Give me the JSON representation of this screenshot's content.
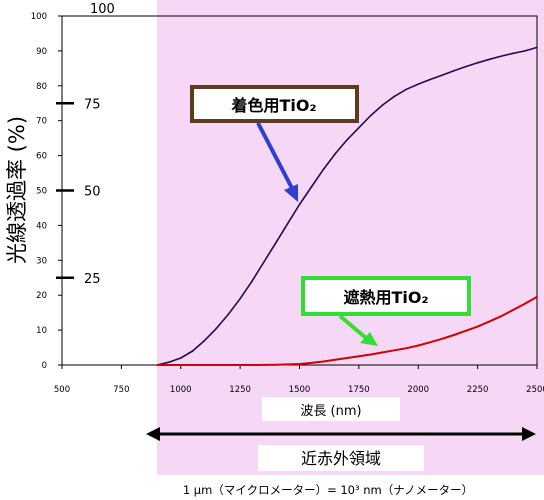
{
  "chart_data": {
    "type": "line",
    "ylabel": "光線透過率 (%)",
    "xlabel": "波長 (nm)",
    "xlim": [
      500,
      2500
    ],
    "ylim": [
      0,
      100
    ],
    "x_ticks": [
      "500",
      "750",
      "1000",
      "1250",
      "1500",
      "1750",
      "2000",
      "2250",
      "2500"
    ],
    "y_ticks": [
      "0",
      "10",
      "20",
      "30",
      "40",
      "50",
      "60",
      "70",
      "80",
      "90",
      "100"
    ],
    "y_ticks_secondary": [
      "100",
      "75",
      "50",
      "25"
    ],
    "grid": false,
    "shaded_region": {
      "x_from": 900,
      "x_to": 2500,
      "label": "近赤外領域"
    },
    "footnote": "1 μm（マイクロメーター）= 10³ nm（ナノメーター）",
    "series": [
      {
        "name": "着色用TiO₂",
        "color": "#1d0f4e",
        "x": [
          900,
          950,
          1000,
          1050,
          1100,
          1150,
          1200,
          1250,
          1300,
          1350,
          1400,
          1450,
          1500,
          1550,
          1600,
          1650,
          1700,
          1750,
          1800,
          1850,
          1900,
          1950,
          2000,
          2050,
          2100,
          2150,
          2200,
          2250,
          2300,
          2350,
          2400,
          2450,
          2500
        ],
        "values": [
          0,
          0.8,
          2,
          4,
          7,
          10.5,
          14.5,
          19,
          24,
          29.5,
          35,
          40.5,
          46,
          51,
          56,
          60.5,
          64.5,
          68,
          71.5,
          74.5,
          77,
          79,
          80.5,
          81.8,
          83,
          84.3,
          85.5,
          86.6,
          87.6,
          88.5,
          89.3,
          90,
          91
        ]
      },
      {
        "name": "遮熱用TiO₂",
        "color": "#d00000",
        "x": [
          900,
          1000,
          1100,
          1200,
          1300,
          1400,
          1500,
          1550,
          1600,
          1650,
          1700,
          1750,
          1800,
          1850,
          1900,
          1950,
          2000,
          2050,
          2100,
          2150,
          2200,
          2250,
          2300,
          2350,
          2400,
          2450,
          2500
        ],
        "values": [
          0,
          0,
          0,
          0,
          0,
          0.1,
          0.3,
          0.6,
          1,
          1.5,
          2,
          2.5,
          3,
          3.6,
          4.2,
          4.8,
          5.6,
          6.5,
          7.5,
          8.6,
          9.8,
          11,
          12.5,
          14,
          15.8,
          17.6,
          19.5
        ]
      }
    ]
  }
}
